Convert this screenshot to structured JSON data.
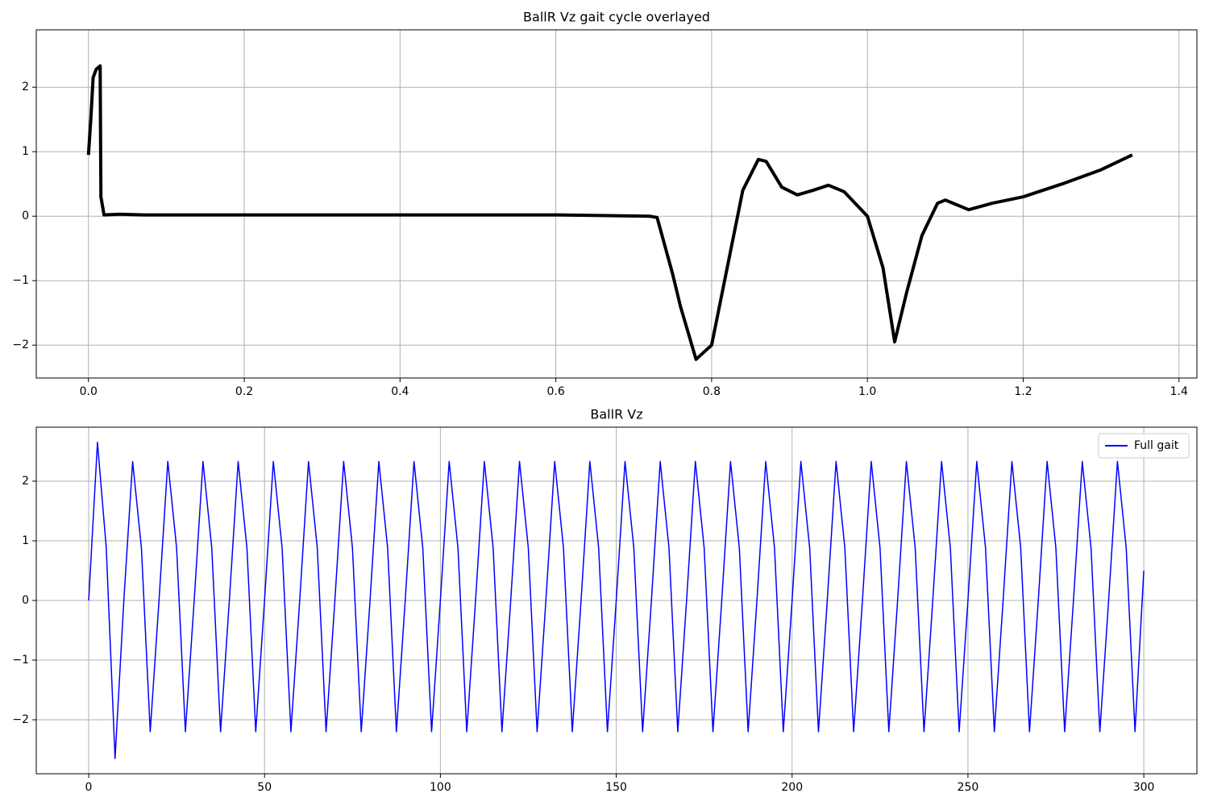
{
  "chart_data": [
    {
      "type": "line",
      "title": "BallR Vz gait cycle overlayed",
      "x": [
        0,
        0.003,
        0.006,
        0.01,
        0.015,
        0.016,
        0.02,
        0.04,
        0.07,
        0.2,
        0.4,
        0.6,
        0.72,
        0.73,
        0.75,
        0.76,
        0.78,
        0.8,
        0.82,
        0.84,
        0.86,
        0.87,
        0.89,
        0.91,
        0.93,
        0.95,
        0.97,
        1.0,
        1.02,
        1.035,
        1.05,
        1.07,
        1.09,
        1.1,
        1.13,
        1.16,
        1.2,
        1.25,
        1.3,
        1.34
      ],
      "series": [
        {
          "color": "#000000",
          "values": [
            0.95,
            1.5,
            2.15,
            2.28,
            2.33,
            0.3,
            0.02,
            0.03,
            0.02,
            0.02,
            0.02,
            0.02,
            0,
            -0.02,
            -0.9,
            -1.4,
            -2.22,
            -2.0,
            -0.8,
            0.4,
            0.88,
            0.85,
            0.45,
            0.33,
            0.4,
            0.48,
            0.38,
            0.0,
            -0.8,
            -1.95,
            -1.2,
            -0.3,
            0.2,
            0.25,
            0.1,
            0.2,
            0.3,
            0.5,
            0.72,
            0.95
          ]
        }
      ],
      "xlim": [
        -0.067,
        1.423
      ],
      "ylim": [
        -2.51,
        2.89
      ],
      "xticks": [
        {
          "value": 0,
          "label": "0.0"
        },
        {
          "value": 0.2,
          "label": "0.2"
        },
        {
          "value": 0.4,
          "label": "0.4"
        },
        {
          "value": 0.6,
          "label": "0.6"
        },
        {
          "value": 0.8,
          "label": "0.8"
        },
        {
          "value": 1.0,
          "label": "1.0"
        },
        {
          "value": 1.2,
          "label": "1.2"
        },
        {
          "value": 1.4,
          "label": "1.4"
        }
      ],
      "yticks": [
        {
          "value": -2,
          "label": "−2"
        },
        {
          "value": -1,
          "label": "−1"
        },
        0,
        1,
        2
      ],
      "grid": true
    },
    {
      "type": "line",
      "title": "BallR Vz",
      "x": [
        0,
        2.5,
        5,
        7.5,
        10,
        12.5,
        15,
        17.5,
        20,
        22.5,
        25,
        27.5,
        30,
        32.5,
        35,
        37.5,
        40,
        42.5,
        45,
        47.5,
        50,
        52.5,
        55,
        57.5,
        60,
        62.5,
        65,
        67.5,
        70,
        72.5,
        75,
        77.5,
        80,
        82.5,
        85,
        87.5,
        90,
        92.5,
        95,
        97.5,
        100,
        102.5,
        105,
        107.5,
        110,
        112.5,
        115,
        117.5,
        120,
        122.5,
        125,
        127.5,
        130,
        132.5,
        135,
        137.5,
        140,
        142.5,
        145,
        147.5,
        150,
        152.5,
        155,
        157.5,
        160,
        162.5,
        165,
        167.5,
        170,
        172.5,
        175,
        177.5,
        180,
        182.5,
        185,
        187.5,
        190,
        192.5,
        195,
        197.5,
        200,
        202.5,
        205,
        207.5,
        210,
        212.5,
        215,
        217.5,
        220,
        222.5,
        225,
        227.5,
        230,
        232.5,
        235,
        237.5,
        240,
        242.5,
        245,
        247.5,
        250,
        252.5,
        255,
        257.5,
        260,
        262.5,
        265,
        267.5,
        270,
        272.5,
        275,
        277.5,
        280,
        282.5,
        285,
        287.5,
        290,
        292.5,
        295,
        297.5,
        300
      ],
      "series": [
        {
          "name": "Full gait",
          "color": "#0000ff",
          "values": [
            0,
            2.65,
            0.88,
            -2.65,
            0,
            2.33,
            0.88,
            -2.2,
            0,
            2.33,
            0.88,
            -2.2,
            0,
            2.33,
            0.88,
            -2.2,
            0,
            2.33,
            0.88,
            -2.2,
            0,
            2.33,
            0.88,
            -2.2,
            0,
            2.33,
            0.88,
            -2.2,
            0,
            2.33,
            0.88,
            -2.2,
            0,
            2.33,
            0.88,
            -2.2,
            0,
            2.33,
            0.88,
            -2.2,
            0,
            2.33,
            0.88,
            -2.2,
            0,
            2.33,
            0.88,
            -2.2,
            0,
            2.33,
            0.88,
            -2.2,
            0,
            2.33,
            0.88,
            -2.2,
            0,
            2.33,
            0.88,
            -2.2,
            0,
            2.33,
            0.88,
            -2.2,
            0,
            2.33,
            0.88,
            -2.2,
            0,
            2.33,
            0.88,
            -2.2,
            0,
            2.33,
            0.88,
            -2.2,
            0,
            2.33,
            0.88,
            -2.2,
            0,
            2.33,
            0.88,
            -2.2,
            0,
            2.33,
            0.88,
            -2.2,
            0,
            2.33,
            0.88,
            -2.2,
            0,
            2.33,
            0.88,
            -2.2,
            0,
            2.33,
            0.88,
            -2.2,
            0,
            2.33,
            0.88,
            -2.2,
            0,
            2.33,
            0.88,
            -2.2,
            0,
            2.33,
            0.88,
            -2.2,
            0,
            2.33,
            0.88,
            -2.2,
            0,
            2.33,
            0.88,
            -2.2,
            0.5
          ]
        }
      ],
      "xlim": [
        -14.9,
        315.1
      ],
      "ylim": [
        -2.905,
        2.905
      ],
      "xticks": [
        0,
        50,
        100,
        150,
        200,
        250,
        300
      ],
      "yticks": [
        {
          "value": -2,
          "label": "−2"
        },
        {
          "value": -1,
          "label": "−1"
        },
        0,
        1,
        2
      ],
      "grid": true,
      "legend": "upper right"
    }
  ]
}
